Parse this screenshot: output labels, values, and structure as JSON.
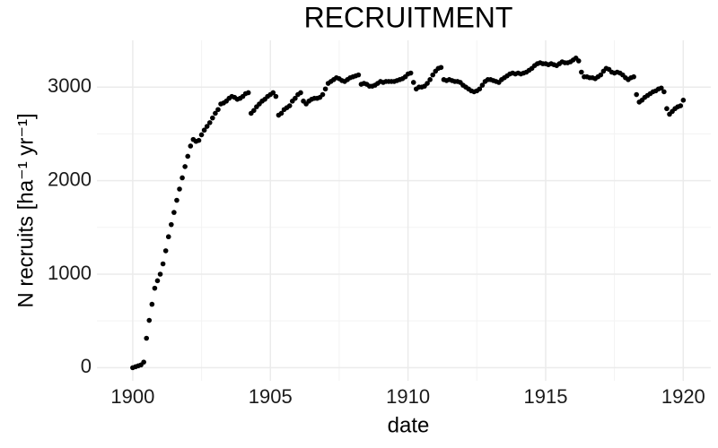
{
  "chart_data": {
    "type": "scatter",
    "title": "RECRUITMENT",
    "x_label": "date",
    "y_label": "N recruits [ha⁻¹ yr⁻¹]",
    "color": "#000000",
    "grid": true,
    "xlim": [
      1898.7,
      1921
    ],
    "xticks": [
      1900,
      1905,
      1910,
      1915,
      1920
    ],
    "x_minor_ticks": [
      1902.5,
      1907.5,
      1912.5,
      1917.5
    ],
    "ylim": [
      -140,
      3500
    ],
    "yticks": [
      0,
      1000,
      2000,
      3000
    ],
    "y_minor_ticks": [
      500,
      1500,
      2500
    ],
    "x": [
      1900.0,
      1900.1,
      1900.2,
      1900.3,
      1900.4,
      1900.5,
      1900.6,
      1900.7,
      1900.8,
      1900.9,
      1901.0,
      1901.1,
      1901.2,
      1901.3,
      1901.4,
      1901.5,
      1901.6,
      1901.7,
      1901.8,
      1901.9,
      1902.0,
      1902.1,
      1902.2,
      1902.3,
      1902.4,
      1902.5,
      1902.6,
      1902.7,
      1902.8,
      1902.9,
      1903.0,
      1903.1,
      1903.2,
      1903.3,
      1903.4,
      1903.5,
      1903.6,
      1903.7,
      1903.8,
      1903.9,
      1904.0,
      1904.1,
      1904.2,
      1904.3,
      1904.4,
      1904.5,
      1904.6,
      1904.7,
      1904.8,
      1904.9,
      1905.0,
      1905.1,
      1905.2,
      1905.3,
      1905.4,
      1905.5,
      1905.6,
      1905.7,
      1905.8,
      1905.9,
      1906.0,
      1906.1,
      1906.2,
      1906.3,
      1906.4,
      1906.5,
      1906.6,
      1906.7,
      1906.8,
      1906.9,
      1907.0,
      1907.1,
      1907.2,
      1907.3,
      1907.4,
      1907.5,
      1907.6,
      1907.7,
      1907.8,
      1907.9,
      1908.0,
      1908.1,
      1908.2,
      1908.3,
      1908.4,
      1908.5,
      1908.6,
      1908.7,
      1908.8,
      1908.9,
      1909.0,
      1909.1,
      1909.2,
      1909.3,
      1909.4,
      1909.5,
      1909.6,
      1909.7,
      1909.8,
      1909.9,
      1910.0,
      1910.1,
      1910.2,
      1910.3,
      1910.4,
      1910.5,
      1910.6,
      1910.7,
      1910.8,
      1910.9,
      1911.0,
      1911.1,
      1911.2,
      1911.3,
      1911.4,
      1911.5,
      1911.6,
      1911.7,
      1911.8,
      1911.9,
      1912.0,
      1912.1,
      1912.2,
      1912.3,
      1912.4,
      1912.5,
      1912.6,
      1912.7,
      1912.8,
      1912.9,
      1913.0,
      1913.1,
      1913.2,
      1913.3,
      1913.4,
      1913.5,
      1913.6,
      1913.7,
      1913.8,
      1913.9,
      1914.0,
      1914.1,
      1914.2,
      1914.3,
      1914.4,
      1914.5,
      1914.6,
      1914.7,
      1914.8,
      1914.9,
      1915.0,
      1915.1,
      1915.2,
      1915.3,
      1915.4,
      1915.5,
      1915.6,
      1915.7,
      1915.8,
      1915.9,
      1916.0,
      1916.1,
      1916.2,
      1916.3,
      1916.4,
      1916.5,
      1916.6,
      1916.7,
      1916.8,
      1916.9,
      1917.0,
      1917.1,
      1917.2,
      1917.3,
      1917.4,
      1917.5,
      1917.6,
      1917.7,
      1917.8,
      1917.9,
      1918.0,
      1918.1,
      1918.2,
      1918.3,
      1918.4,
      1918.5,
      1918.6,
      1918.7,
      1918.8,
      1918.9,
      1919.0,
      1919.1,
      1919.2,
      1919.3,
      1919.4,
      1919.5,
      1919.6,
      1919.7,
      1919.8,
      1919.9,
      1920.0
    ],
    "values": [
      0,
      10,
      20,
      30,
      60,
      315,
      506,
      678,
      850,
      930,
      1000,
      1110,
      1250,
      1400,
      1530,
      1660,
      1790,
      1910,
      2030,
      2150,
      2260,
      2370,
      2440,
      2420,
      2430,
      2490,
      2540,
      2580,
      2620,
      2670,
      2720,
      2760,
      2820,
      2830,
      2850,
      2880,
      2900,
      2890,
      2870,
      2880,
      2900,
      2930,
      2940,
      2720,
      2750,
      2790,
      2820,
      2850,
      2870,
      2900,
      2920,
      2940,
      2900,
      2700,
      2720,
      2760,
      2780,
      2800,
      2850,
      2880,
      2920,
      2940,
      2850,
      2820,
      2850,
      2870,
      2880,
      2880,
      2890,
      2920,
      2980,
      3040,
      3060,
      3080,
      3100,
      3090,
      3070,
      3060,
      3080,
      3100,
      3110,
      3120,
      3130,
      3030,
      3040,
      3030,
      3010,
      3010,
      3020,
      3040,
      3060,
      3050,
      3060,
      3060,
      3060,
      3060,
      3070,
      3080,
      3090,
      3110,
      3140,
      3150,
      3050,
      2980,
      3000,
      3000,
      3010,
      3040,
      3080,
      3130,
      3170,
      3200,
      3210,
      3080,
      3070,
      3080,
      3070,
      3060,
      3060,
      3050,
      3020,
      3000,
      2980,
      2960,
      2950,
      2960,
      2980,
      3020,
      3060,
      3080,
      3080,
      3070,
      3060,
      3050,
      3080,
      3100,
      3120,
      3140,
      3150,
      3140,
      3150,
      3140,
      3150,
      3160,
      3180,
      3200,
      3230,
      3250,
      3260,
      3250,
      3250,
      3240,
      3250,
      3240,
      3230,
      3250,
      3270,
      3260,
      3260,
      3270,
      3290,
      3310,
      3280,
      3160,
      3110,
      3110,
      3100,
      3100,
      3090,
      3110,
      3130,
      3170,
      3200,
      3190,
      3160,
      3150,
      3160,
      3150,
      3130,
      3100,
      3080,
      3100,
      3110,
      2920,
      2840,
      2860,
      2890,
      2910,
      2930,
      2950,
      2960,
      2980,
      2990,
      2950,
      2770,
      2710,
      2740,
      2770,
      2790,
      2800,
      2860
    ]
  }
}
